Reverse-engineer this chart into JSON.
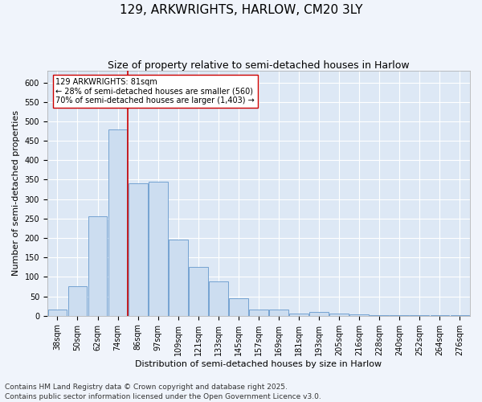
{
  "title": "129, ARKWRIGHTS, HARLOW, CM20 3LY",
  "subtitle": "Size of property relative to semi-detached houses in Harlow",
  "xlabel": "Distribution of semi-detached houses by size in Harlow",
  "ylabel": "Number of semi-detached properties",
  "categories": [
    "38sqm",
    "50sqm",
    "62sqm",
    "74sqm",
    "86sqm",
    "97sqm",
    "109sqm",
    "121sqm",
    "133sqm",
    "145sqm",
    "157sqm",
    "169sqm",
    "181sqm",
    "193sqm",
    "205sqm",
    "216sqm",
    "228sqm",
    "240sqm",
    "252sqm",
    "264sqm",
    "276sqm"
  ],
  "bar_heights": [
    15,
    75,
    255,
    480,
    340,
    345,
    195,
    125,
    88,
    45,
    15,
    15,
    6,
    10,
    6,
    4,
    2,
    2,
    1,
    1,
    1
  ],
  "line_x_index": 3.5,
  "bar_color": "#ccddf0",
  "bar_edge_color": "#6699cc",
  "line_color": "#cc0000",
  "annotation_text": "129 ARKWRIGHTS: 81sqm\n← 28% of semi-detached houses are smaller (560)\n70% of semi-detached houses are larger (1,403) →",
  "annotation_box_facecolor": "#ffffff",
  "annotation_box_edgecolor": "#cc0000",
  "ylim": [
    0,
    630
  ],
  "yticks": [
    0,
    50,
    100,
    150,
    200,
    250,
    300,
    350,
    400,
    450,
    500,
    550,
    600
  ],
  "footer": "Contains HM Land Registry data © Crown copyright and database right 2025.\nContains public sector information licensed under the Open Government Licence v3.0.",
  "fig_facecolor": "#f0f4fb",
  "ax_facecolor": "#dde8f5",
  "grid_color": "#ffffff",
  "title_fontsize": 11,
  "subtitle_fontsize": 9,
  "axis_label_fontsize": 8,
  "tick_fontsize": 7,
  "annotation_fontsize": 7,
  "footer_fontsize": 6.5
}
